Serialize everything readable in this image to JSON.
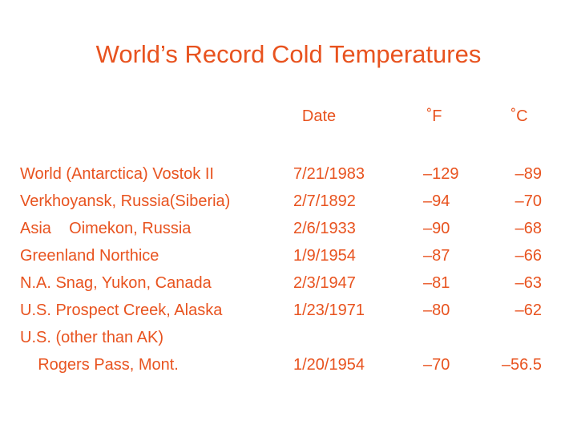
{
  "title": "World’s Record Cold Temperatures",
  "table": {
    "header": [
      "Date",
      "˚F",
      "˚C"
    ],
    "rows": [
      {
        "place": [
          "World (Antarctica) Vostok II"
        ],
        "date": "7/21/1983",
        "f": "–129",
        "c": "–89"
      },
      {
        "place": [
          "Verkhoyansk, Russia(Siberia)"
        ],
        "date": "2/7/1892",
        "f": "–94",
        "c": "–70"
      },
      {
        "place": [
          "Asia    Oimekon, Russia"
        ],
        "date": "2/6/1933",
        "f": "–90",
        "c": "–68"
      },
      {
        "place": [
          "Greenland Northice"
        ],
        "date": "1/9/1954",
        "f": "–87",
        "c": "–66"
      },
      {
        "place": [
          "N.A. Snag, Yukon, Canada"
        ],
        "date": "2/3/1947",
        "f": "–81",
        "c": "–63"
      },
      {
        "place": [
          "U.S. Prospect Creek, Alaska"
        ],
        "date": "1/23/1971",
        "f": "–80",
        "c": "–62"
      },
      {
        "place": [
          "U.S. (other than AK)",
          "    Rogers Pass, Mont."
        ],
        "date": "1/20/1954",
        "f": "–70",
        "c": "–56.5"
      }
    ]
  }
}
